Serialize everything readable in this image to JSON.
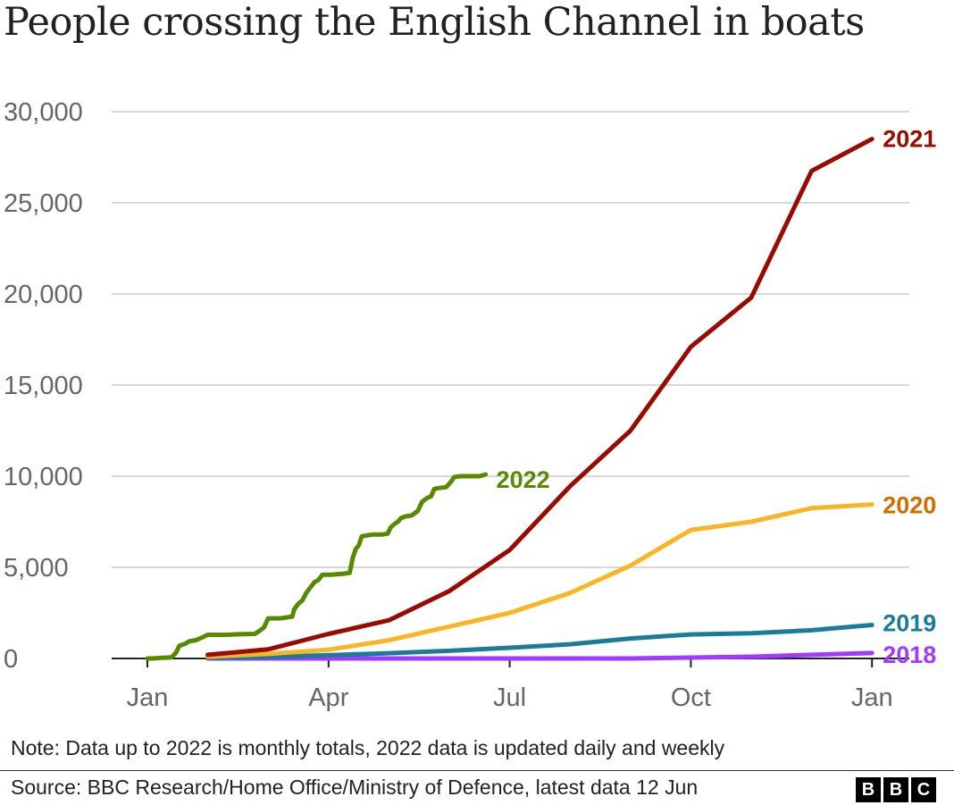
{
  "chart": {
    "title": "People crossing the English Channel in boats",
    "note": "Note: Data up to 2022 is monthly totals, 2022 data is updated daily and weekly",
    "source": "Source: BBC Research/Home Office/Ministry of Defence, latest data 12 Jun",
    "logo": "BBC"
  },
  "chart_data": {
    "type": "line",
    "title": "People crossing the English Channel in boats",
    "xlabel": "",
    "ylabel": "",
    "ylim": [
      0,
      30000
    ],
    "y_ticks": [
      0,
      5000,
      10000,
      15000,
      20000,
      25000,
      30000
    ],
    "y_tick_labels": [
      "0",
      "5,000",
      "10,000",
      "15,000",
      "20,000",
      "25,000",
      "30,000"
    ],
    "x_ticks": [
      "Jan",
      "Apr",
      "Jul",
      "Oct",
      "Jan"
    ],
    "x_tick_positions": [
      0,
      3,
      6,
      9,
      12
    ],
    "xlim": [
      -0.3,
      12.6
    ],
    "grid": true,
    "colors": {
      "2018": "#a03bff",
      "2019": "#1a7c9a",
      "2020": "#fab524",
      "2021": "#990a00",
      "2022": "#588a00"
    },
    "label_colors": {
      "2018": "#a03bff",
      "2019": "#1a7c9a",
      "2020": "#d16e00",
      "2021": "#990a00",
      "2022": "#588a00"
    },
    "series": [
      {
        "name": "2018",
        "x": [
          1,
          2,
          3,
          4,
          5,
          6,
          7,
          8,
          9,
          10,
          11,
          12
        ],
        "values": [
          0,
          0,
          0,
          0,
          0,
          0,
          0,
          0,
          50,
          100,
          200,
          300
        ]
      },
      {
        "name": "2019",
        "x": [
          1,
          2,
          3,
          4,
          5,
          6,
          7,
          8,
          9,
          10,
          11,
          12
        ],
        "values": [
          30,
          80,
          180,
          290,
          420,
          590,
          780,
          1100,
          1320,
          1380,
          1550,
          1840
        ]
      },
      {
        "name": "2020",
        "x": [
          1,
          2,
          3,
          4,
          5,
          6,
          7,
          8,
          9,
          10,
          11,
          12
        ],
        "values": [
          100,
          250,
          480,
          1000,
          1750,
          2500,
          3600,
          5100,
          7050,
          7500,
          8250,
          8450
        ]
      },
      {
        "name": "2021",
        "x": [
          1,
          2,
          3,
          4,
          5,
          6,
          7,
          8,
          9,
          10,
          11,
          12
        ],
        "values": [
          200,
          500,
          1350,
          2100,
          3700,
          5950,
          9450,
          12500,
          17100,
          19800,
          26750,
          28500
        ]
      },
      {
        "name": "2022",
        "x": [
          0,
          0.1,
          0.2,
          0.33,
          0.4,
          0.47,
          0.53,
          0.62,
          0.7,
          0.8,
          0.87,
          1.0,
          1.3,
          1.5,
          1.78,
          1.85,
          1.93,
          2.0,
          2.2,
          2.3,
          2.4,
          2.43,
          2.5,
          2.57,
          2.63,
          2.7,
          2.77,
          2.83,
          2.9,
          3.05,
          3.25,
          3.35,
          3.4,
          3.45,
          3.5,
          3.55,
          3.63,
          3.73,
          3.88,
          3.98,
          4.03,
          4.1,
          4.15,
          4.2,
          4.28,
          4.38,
          4.48,
          4.55,
          4.63,
          4.7,
          4.75,
          4.82,
          4.95,
          5.03,
          5.08,
          5.18,
          5.3,
          5.4,
          5.5,
          5.6
        ],
        "values": [
          0,
          0,
          30,
          50,
          60,
          300,
          700,
          800,
          950,
          1000,
          1100,
          1300,
          1300,
          1330,
          1350,
          1500,
          1700,
          2200,
          2200,
          2250,
          2300,
          2700,
          3000,
          3200,
          3600,
          3900,
          4200,
          4300,
          4600,
          4600,
          4650,
          4700,
          5500,
          6000,
          6200,
          6700,
          6750,
          6800,
          6800,
          6850,
          7200,
          7400,
          7500,
          7700,
          7800,
          7850,
          8100,
          8600,
          8800,
          8900,
          9300,
          9350,
          9400,
          9700,
          9950,
          10000,
          10000,
          10000,
          10000,
          10100
        ]
      }
    ],
    "series_labels": [
      "2018",
      "2019",
      "2020",
      "2021",
      "2022"
    ]
  }
}
